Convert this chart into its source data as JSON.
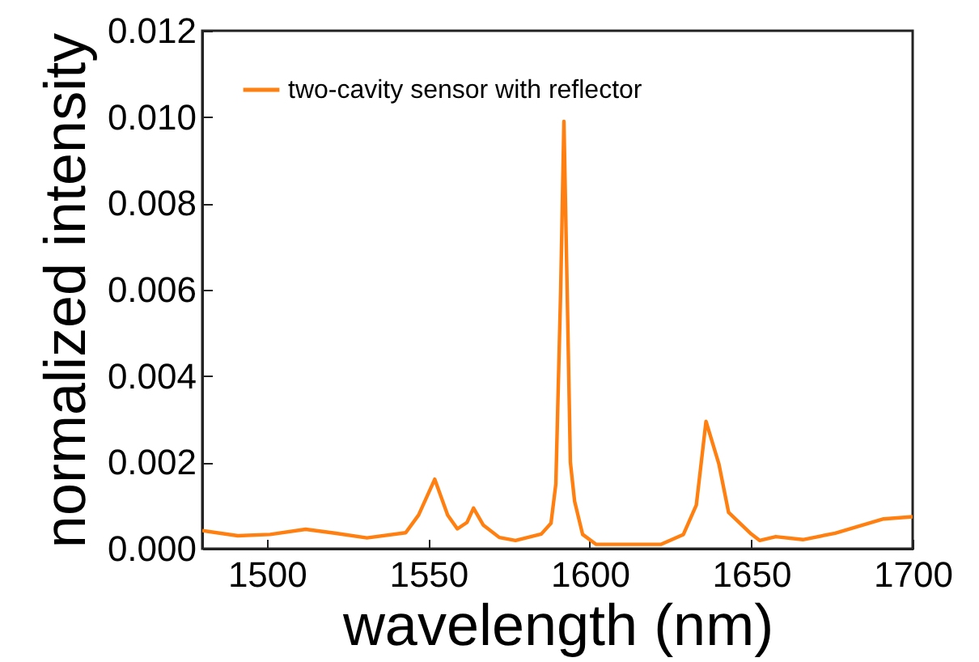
{
  "chart_data": {
    "type": "line",
    "xlabel": "wavelength (nm)",
    "ylabel": "normalized intensity",
    "xlim": [
      1480,
      1700
    ],
    "ylim": [
      0,
      0.012
    ],
    "xticks": [
      1500,
      1550,
      1600,
      1650,
      1700
    ],
    "yticks": [
      {
        "value": 0,
        "label": "0.000"
      },
      {
        "value": 0.002,
        "label": "0.002"
      },
      {
        "value": 0.004,
        "label": "0.004"
      },
      {
        "value": 0.006,
        "label": "0.006"
      },
      {
        "value": 0.008,
        "label": "0.008"
      },
      {
        "value": 0.01,
        "label": "0.010"
      },
      {
        "value": 0.012,
        "label": "0.012"
      }
    ],
    "legend": "top left",
    "x": [
      1480,
      1491,
      1501,
      1512,
      1521,
      1531,
      1543,
      1547,
      1552,
      1556,
      1559,
      1562,
      1564,
      1567,
      1572,
      1577,
      1585,
      1588,
      1589.5,
      1591,
      1592,
      1593,
      1594,
      1595.3,
      1597.8,
      1602,
      1612,
      1622,
      1629,
      1633,
      1636,
      1640,
      1643,
      1650,
      1652.6,
      1657.6,
      1666,
      1676,
      1691,
      1700
    ],
    "series": [
      {
        "name": "two-cavity sensor with reflector",
        "color": "#ff8010",
        "values": [
          0.00042,
          0.0003,
          0.00033,
          0.00045,
          0.00036,
          0.00025,
          0.00037,
          0.00078,
          0.00161,
          0.00078,
          0.00046,
          0.00061,
          0.00094,
          0.00055,
          0.00026,
          0.00019,
          0.00034,
          0.00059,
          0.0015,
          0.006,
          0.0099,
          0.006,
          0.002,
          0.0011,
          0.00033,
          0.0001,
          0.0001,
          0.0001,
          0.00033,
          0.00101,
          0.00295,
          0.00196,
          0.00084,
          0.00034,
          0.00019,
          0.00028,
          0.00021,
          0.00036,
          0.00069,
          0.00074
        ]
      }
    ]
  }
}
